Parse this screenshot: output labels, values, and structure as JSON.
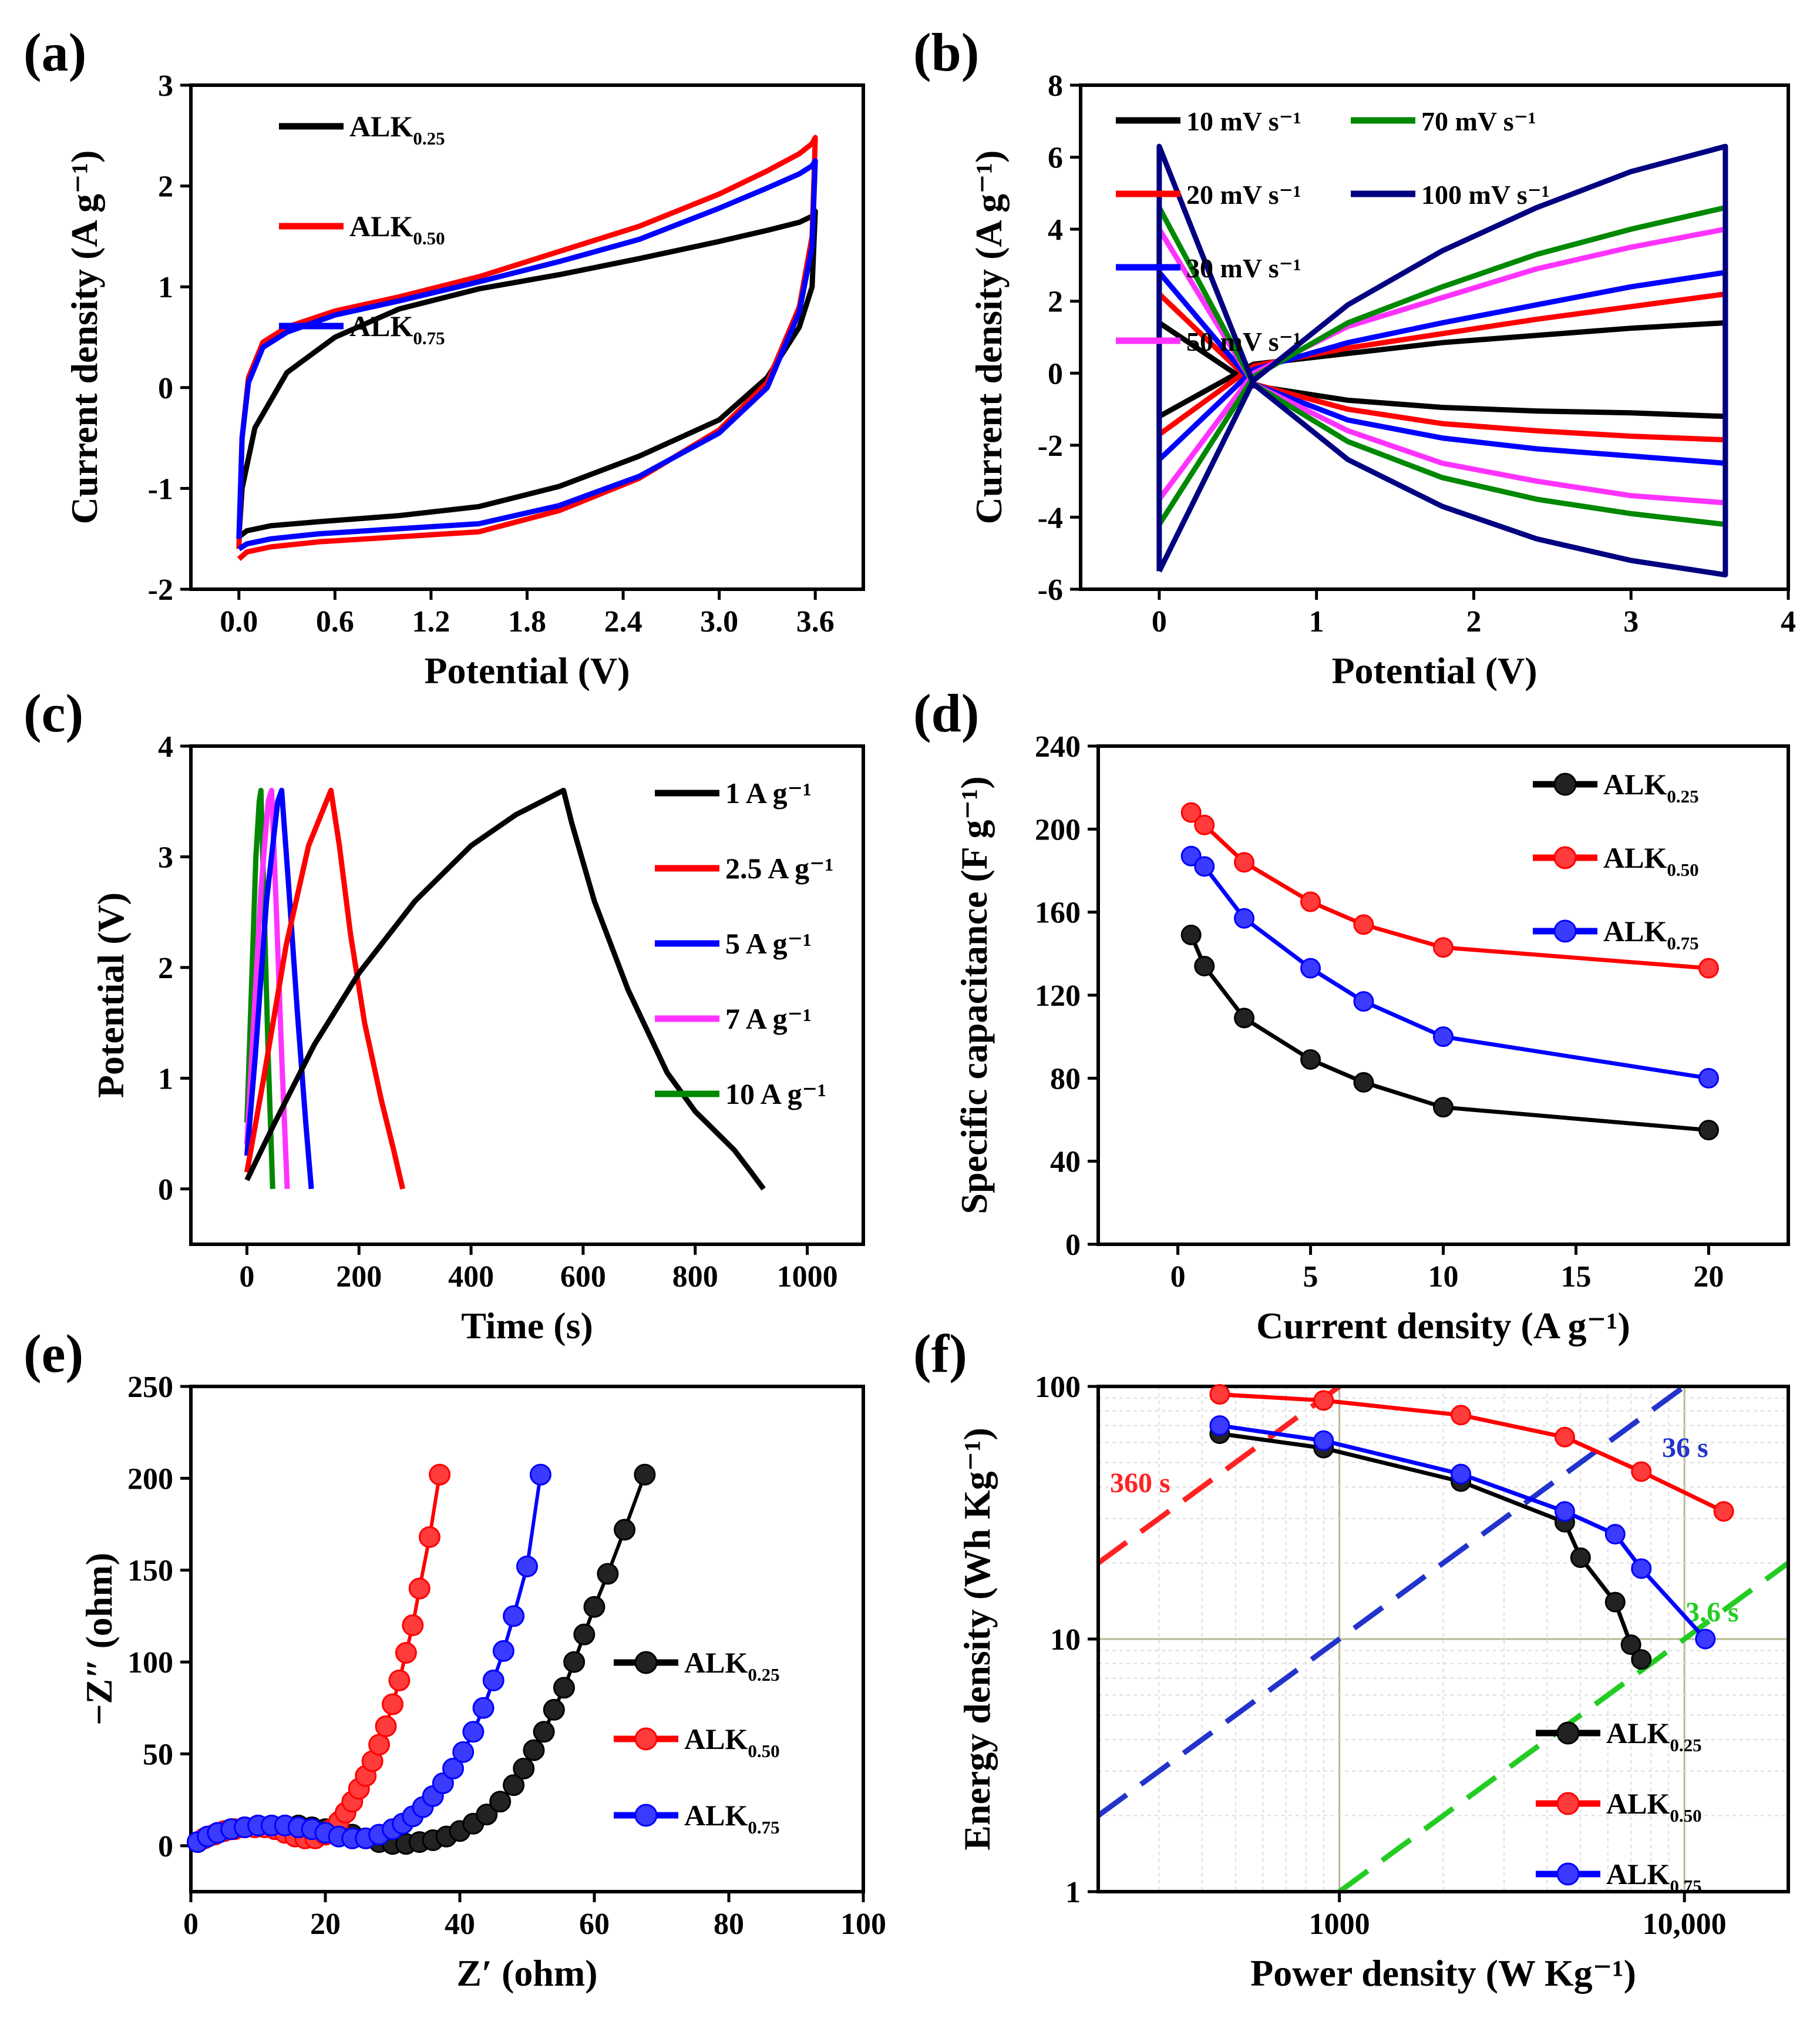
{
  "chart_data": [
    {
      "id": "a",
      "type": "line",
      "panel_label": "(a)",
      "xlabel": "Potential (V)",
      "ylabel": "Current density (A g⁻¹)",
      "xlim": [
        -0.3,
        3.9
      ],
      "ylim": [
        -2,
        3
      ],
      "xticks": [
        0.0,
        0.6,
        1.2,
        1.8,
        2.4,
        3.0,
        3.6
      ],
      "xtick_labels": [
        "0.0",
        "0.6",
        "1.2",
        "1.8",
        "2.4",
        "3.0",
        "3.6"
      ],
      "yticks": [
        -2,
        -1,
        0,
        1,
        2,
        3
      ],
      "ytick_labels": [
        "-2",
        "-1",
        "0",
        "1",
        "2",
        "3"
      ],
      "legend_position": "top-left",
      "series": [
        {
          "name": "ALK",
          "sub": "0.25",
          "color": "#000000",
          "x": [
            0,
            0.02,
            0.1,
            0.3,
            0.6,
            1.0,
            1.5,
            2.0,
            2.5,
            3.0,
            3.3,
            3.5,
            3.58,
            3.6,
            3.58,
            3.5,
            3.3,
            3.0,
            2.5,
            2.0,
            1.5,
            1.0,
            0.5,
            0.2,
            0.05,
            0
          ],
          "y": [
            -1.5,
            -1.0,
            -0.4,
            0.15,
            0.5,
            0.78,
            0.98,
            1.12,
            1.28,
            1.45,
            1.56,
            1.64,
            1.7,
            1.75,
            1.0,
            0.6,
            0.1,
            -0.32,
            -0.68,
            -0.98,
            -1.18,
            -1.27,
            -1.33,
            -1.37,
            -1.42,
            -1.48
          ]
        },
        {
          "name": "ALK",
          "sub": "0.50",
          "color": "#ff0000",
          "x": [
            0,
            0.02,
            0.06,
            0.15,
            0.3,
            0.6,
            1.0,
            1.5,
            2.0,
            2.5,
            3.0,
            3.3,
            3.5,
            3.58,
            3.6,
            3.58,
            3.5,
            3.3,
            3.0,
            2.5,
            2.0,
            1.5,
            1.0,
            0.5,
            0.2,
            0.05,
            0
          ],
          "y": [
            -1.6,
            -0.5,
            0.1,
            0.45,
            0.6,
            0.76,
            0.9,
            1.1,
            1.35,
            1.6,
            1.92,
            2.15,
            2.32,
            2.42,
            2.48,
            1.5,
            0.8,
            0.05,
            -0.42,
            -0.9,
            -1.22,
            -1.43,
            -1.48,
            -1.53,
            -1.58,
            -1.63,
            -1.7
          ]
        },
        {
          "name": "ALK",
          "sub": "0.75",
          "color": "#0000ff",
          "x": [
            0,
            0.02,
            0.06,
            0.15,
            0.3,
            0.6,
            1.0,
            1.5,
            2.0,
            2.5,
            3.0,
            3.3,
            3.5,
            3.58,
            3.6,
            3.58,
            3.5,
            3.3,
            3.0,
            2.5,
            2.0,
            1.5,
            1.0,
            0.5,
            0.2,
            0.05,
            0
          ],
          "y": [
            -1.5,
            -0.5,
            0.05,
            0.4,
            0.55,
            0.72,
            0.86,
            1.05,
            1.25,
            1.47,
            1.78,
            1.98,
            2.12,
            2.2,
            2.25,
            1.4,
            0.75,
            0.0,
            -0.45,
            -0.88,
            -1.17,
            -1.35,
            -1.4,
            -1.45,
            -1.5,
            -1.55,
            -1.6
          ]
        }
      ]
    },
    {
      "id": "b",
      "type": "line",
      "panel_label": "(b)",
      "xlabel": "Potential (V)",
      "ylabel": "Current density (A g⁻¹)",
      "xlim": [
        -0.5,
        4
      ],
      "ylim": [
        -6,
        8
      ],
      "xticks": [
        0,
        1,
        2,
        3,
        4
      ],
      "xtick_labels": [
        "0",
        "1",
        "2",
        "3",
        "4"
      ],
      "yticks": [
        -6,
        -4,
        -2,
        0,
        2,
        4,
        6,
        8
      ],
      "ytick_labels": [
        "-6",
        "-4",
        "-2",
        "0",
        "2",
        "4",
        "6",
        "8"
      ],
      "legend_position": "top-left",
      "series": [
        {
          "name": "10 mV s⁻¹",
          "color": "#000000",
          "top": [
            -1.2,
            0.25,
            0.55,
            0.85,
            1.05,
            1.25,
            1.4
          ],
          "bottom": [
            1.4,
            -0.35,
            -0.75,
            -0.95,
            -1.05,
            -1.1,
            -1.2
          ]
        },
        {
          "name": "20 mV s⁻¹",
          "color": "#ff0000",
          "top": [
            -1.7,
            0.2,
            0.7,
            1.1,
            1.5,
            1.85,
            2.2
          ],
          "bottom": [
            2.2,
            -0.3,
            -1.0,
            -1.4,
            -1.6,
            -1.75,
            -1.85
          ]
        },
        {
          "name": "30 mV s⁻¹",
          "color": "#0000ff",
          "top": [
            -2.4,
            0.1,
            0.85,
            1.4,
            1.9,
            2.4,
            2.8
          ],
          "bottom": [
            2.8,
            -0.3,
            -1.3,
            -1.8,
            -2.1,
            -2.3,
            -2.5
          ]
        },
        {
          "name": "50 mV s⁻¹",
          "color": "#ff33ff",
          "top": [
            -3.5,
            0.0,
            1.3,
            2.1,
            2.9,
            3.5,
            4.0
          ],
          "bottom": [
            4.0,
            -0.3,
            -1.6,
            -2.5,
            -3.0,
            -3.4,
            -3.6
          ]
        },
        {
          "name": "70 mV s⁻¹",
          "color": "#008800",
          "top": [
            -4.2,
            -0.1,
            1.4,
            2.4,
            3.3,
            4.0,
            4.6
          ],
          "bottom": [
            4.6,
            -0.3,
            -1.9,
            -2.9,
            -3.5,
            -3.9,
            -4.2
          ]
        },
        {
          "name": "100 mV s⁻¹",
          "color": "#000080",
          "top": [
            -5.5,
            -0.2,
            1.9,
            3.4,
            4.6,
            5.6,
            6.3
          ],
          "bottom": [
            6.3,
            -0.3,
            -2.4,
            -3.7,
            -4.6,
            -5.2,
            -5.6
          ]
        }
      ],
      "x_points": [
        0,
        0.6,
        1.2,
        1.8,
        2.4,
        3.0,
        3.6
      ]
    },
    {
      "id": "c",
      "type": "line",
      "panel_label": "(c)",
      "xlabel": "Time (s)",
      "ylabel": "Potential (V)",
      "xlim": [
        -100,
        1100
      ],
      "ylim": [
        -0.5,
        4
      ],
      "xticks": [
        0,
        200,
        400,
        600,
        800,
        1000
      ],
      "xtick_labels": [
        "0",
        "200",
        "400",
        "600",
        "800",
        "1000"
      ],
      "yticks": [
        0,
        1,
        2,
        3,
        4
      ],
      "ytick_labels": [
        "0",
        "1",
        "2",
        "3",
        "4"
      ],
      "legend_position": "top-right",
      "series": [
        {
          "name": "1 A g⁻¹",
          "color": "#000000",
          "x": [
            0,
            50,
            120,
            200,
            300,
            400,
            480,
            565,
            580,
            620,
            680,
            750,
            800,
            830,
            870,
            900,
            922
          ],
          "y": [
            0.08,
            0.6,
            1.3,
            1.95,
            2.6,
            3.1,
            3.38,
            3.6,
            3.3,
            2.6,
            1.8,
            1.05,
            0.7,
            0.55,
            0.35,
            0.15,
            0.0
          ]
        },
        {
          "name": "2.5 A g⁻¹",
          "color": "#ff0000",
          "x": [
            0,
            30,
            70,
            110,
            150,
            165,
            185,
            210,
            240,
            262,
            278
          ],
          "y": [
            0.15,
            1.0,
            2.2,
            3.1,
            3.6,
            3.1,
            2.3,
            1.5,
            0.8,
            0.35,
            0.0
          ]
        },
        {
          "name": "5 A g⁻¹",
          "color": "#0000ff",
          "x": [
            0,
            15,
            35,
            55,
            62,
            75,
            90,
            105,
            115
          ],
          "y": [
            0.3,
            1.2,
            2.6,
            3.5,
            3.6,
            2.7,
            1.6,
            0.6,
            0.0
          ]
        },
        {
          "name": "7 A g⁻¹",
          "color": "#ff33ff",
          "x": [
            0,
            12,
            25,
            38,
            44,
            52,
            62,
            72
          ],
          "y": [
            0.4,
            1.5,
            2.7,
            3.5,
            3.6,
            2.6,
            1.2,
            0.0
          ]
        },
        {
          "name": "10 A g⁻¹",
          "color": "#008800",
          "x": [
            0,
            8,
            16,
            22,
            25,
            31,
            38,
            46
          ],
          "y": [
            0.6,
            1.8,
            3.0,
            3.5,
            3.6,
            2.5,
            1.2,
            0.0
          ]
        }
      ]
    },
    {
      "id": "d",
      "type": "line",
      "panel_label": "(d)",
      "xlabel": "Current density (A g⁻¹)",
      "ylabel": "Specific capacitance (F g⁻¹)",
      "xlim": [
        -3,
        23
      ],
      "ylim": [
        0,
        240
      ],
      "xticks": [
        0,
        5,
        10,
        15,
        20
      ],
      "xtick_labels": [
        "0",
        "5",
        "10",
        "15",
        "20"
      ],
      "yticks": [
        0,
        40,
        80,
        120,
        160,
        200,
        240
      ],
      "ytick_labels": [
        "0",
        "40",
        "80",
        "120",
        "160",
        "200",
        "240"
      ],
      "legend_position": "top-right",
      "x": [
        0.5,
        1,
        2.5,
        5,
        7,
        10,
        20
      ],
      "series": [
        {
          "name": "ALK",
          "sub": "0.25",
          "color": "#000000",
          "fill": "#222222",
          "values": [
            149,
            134,
            109,
            89,
            78,
            66,
            55
          ]
        },
        {
          "name": "ALK",
          "sub": "0.50",
          "color": "#ff0000",
          "fill": "#ff3b3b",
          "values": [
            208,
            202,
            184,
            165,
            154,
            143,
            133
          ]
        },
        {
          "name": "ALK",
          "sub": "0.75",
          "color": "#0000ff",
          "fill": "#3b3bff",
          "values": [
            187,
            182,
            157,
            133,
            117,
            100,
            80
          ]
        }
      ]
    },
    {
      "id": "e",
      "type": "scatter",
      "panel_label": "(e)",
      "xlabel": "Z′ (ohm)",
      "ylabel": "−Z″ (ohm)",
      "xlim": [
        0,
        100
      ],
      "ylim": [
        -25,
        250
      ],
      "xticks": [
        0,
        20,
        40,
        60,
        80,
        100
      ],
      "xtick_labels": [
        "0",
        "20",
        "40",
        "60",
        "80",
        "100"
      ],
      "yticks": [
        0,
        50,
        100,
        150,
        200,
        250
      ],
      "ytick_labels": [
        "0",
        "50",
        "100",
        "150",
        "200",
        "250"
      ],
      "legend_position": "bottom-right",
      "series": [
        {
          "name": "ALK",
          "sub": "0.25",
          "color": "#000000",
          "fill": "#222222",
          "x": [
            1,
            2,
            4,
            6,
            8,
            10,
            12,
            14,
            16,
            18,
            20,
            22,
            24,
            26,
            28,
            30,
            32,
            34,
            36,
            38,
            40,
            42,
            44,
            46,
            48,
            49.5,
            51,
            52.5,
            54,
            55.5,
            57,
            58.5,
            60,
            62,
            64.5,
            67.5
          ],
          "y": [
            2,
            4,
            7,
            9,
            10,
            11,
            11,
            11,
            11,
            10,
            9,
            8,
            6,
            4,
            2,
            1,
            1,
            2,
            3,
            5,
            8,
            12,
            17,
            24,
            33,
            42,
            52,
            62,
            74,
            86,
            100,
            115,
            130,
            148,
            172,
            202
          ]
        },
        {
          "name": "ALK",
          "sub": "0.50",
          "color": "#ff0000",
          "fill": "#ff3b3b",
          "x": [
            1,
            2,
            3.5,
            5,
            6.5,
            8,
            9.5,
            11,
            12.5,
            14,
            15.5,
            17,
            18.5,
            20,
            21,
            22,
            23,
            24,
            25,
            26,
            27,
            28,
            29,
            30,
            31,
            32,
            33,
            34,
            35.5,
            37
          ],
          "y": [
            2,
            4,
            6,
            8,
            9,
            10,
            10,
            10,
            9,
            7,
            5,
            4,
            4,
            6,
            9,
            13,
            18,
            24,
            31,
            38,
            46,
            55,
            65,
            77,
            90,
            105,
            120,
            140,
            168,
            202
          ]
        },
        {
          "name": "ALK",
          "sub": "0.75",
          "color": "#0000ff",
          "fill": "#3b3bff",
          "x": [
            1,
            2.5,
            4,
            6,
            8,
            10,
            12,
            14,
            16,
            18,
            20,
            22,
            24,
            26,
            28,
            30,
            31.5,
            33,
            34.5,
            36,
            37.5,
            39,
            40.5,
            42,
            43.5,
            45,
            46.5,
            48,
            50,
            52
          ],
          "y": [
            2,
            5,
            7,
            9,
            10,
            11,
            11,
            11,
            10,
            9,
            7,
            5,
            4,
            4,
            6,
            9,
            12,
            16,
            21,
            27,
            34,
            42,
            51,
            62,
            75,
            90,
            106,
            125,
            152,
            202
          ]
        }
      ]
    },
    {
      "id": "f",
      "type": "line",
      "panel_label": "(f)",
      "xlabel": "Power density (W Kg⁻¹)",
      "ylabel": "Energy density (Wh Kg⁻¹)",
      "xscale": "log",
      "yscale": "log",
      "xlim": [
        200,
        20000
      ],
      "ylim": [
        1,
        100
      ],
      "xticks": [
        1000,
        10000
      ],
      "xtick_labels": [
        "1000",
        "10,000"
      ],
      "yticks": [
        1,
        10,
        100
      ],
      "ytick_labels": [
        "1",
        "10",
        "100"
      ],
      "legend_position": "bottom-right",
      "series": [
        {
          "name": "ALK",
          "sub": "0.25",
          "color": "#000000",
          "fill": "#222222",
          "x": [
            450,
            900,
            2250,
            4500,
            5000,
            6300,
            7000,
            7500
          ],
          "y": [
            65,
            57,
            42,
            29,
            21,
            14,
            9.5,
            8.3
          ]
        },
        {
          "name": "ALK",
          "sub": "0.50",
          "color": "#ff0000",
          "fill": "#ff3b3b",
          "x": [
            450,
            900,
            2250,
            4500,
            7500,
            13000
          ],
          "y": [
            93,
            88,
            77,
            63,
            46,
            32
          ]
        },
        {
          "name": "ALK",
          "sub": "0.75",
          "color": "#0000ff",
          "fill": "#3b3bff",
          "x": [
            450,
            900,
            2250,
            4500,
            6300,
            7500,
            11500
          ],
          "y": [
            70,
            61,
            45,
            32,
            26,
            19,
            10
          ]
        }
      ],
      "time_lines": [
        {
          "label": "360 s",
          "color": "#ff2222",
          "seconds": 360
        },
        {
          "label": "36 s",
          "color": "#2233cc",
          "seconds": 36
        },
        {
          "label": "3.6 s",
          "color": "#22cc22",
          "seconds": 3.6
        }
      ]
    }
  ]
}
